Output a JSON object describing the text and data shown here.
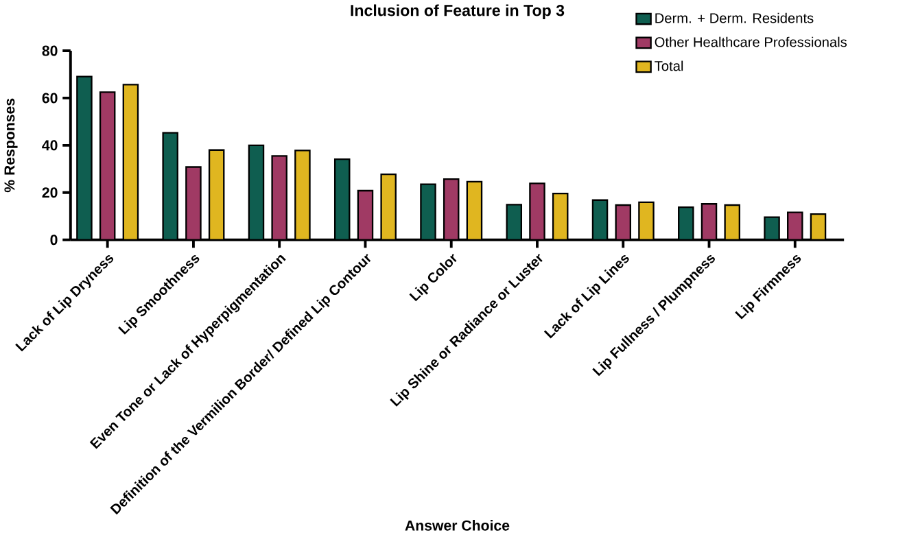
{
  "chart_data": {
    "type": "bar",
    "title": "Inclusion of Feature in Top 3",
    "xlabel": "Answer Choice",
    "ylabel": "% Responses",
    "categories": [
      "Lack of Lip Dryness",
      "Lip Smoothness",
      "Even Tone or Lack of Hyperpigmentation",
      "Definition of the Vermilion Border/ Defined Lip Contour",
      "Lip Color",
      "Lip Shine or Radiance or Luster",
      "Lack of Lip Lines",
      "Lip Fullness / Plumpness",
      "Lip Firmness"
    ],
    "series": [
      {
        "name": "Derm. + Derm. Residents",
        "color": "#0f5e50",
        "values": [
          69.1,
          45.3,
          40,
          34.1,
          23.5,
          14.9,
          16.8,
          13.8,
          9.6
        ]
      },
      {
        "name": "Other Healthcare Professionals",
        "color": "#a03a64",
        "values": [
          62.5,
          30.8,
          35.5,
          20.8,
          25.7,
          23.9,
          14.7,
          15.2,
          11.6
        ]
      },
      {
        "name": "Total",
        "color": "#e0b620",
        "values": [
          65.7,
          38,
          37.8,
          27.7,
          24.6,
          19.6,
          15.9,
          14.7,
          10.9
        ]
      }
    ],
    "ylim": [
      0,
      80
    ],
    "yticks": [
      0,
      20,
      40,
      60,
      80
    ],
    "legend": "top right"
  }
}
